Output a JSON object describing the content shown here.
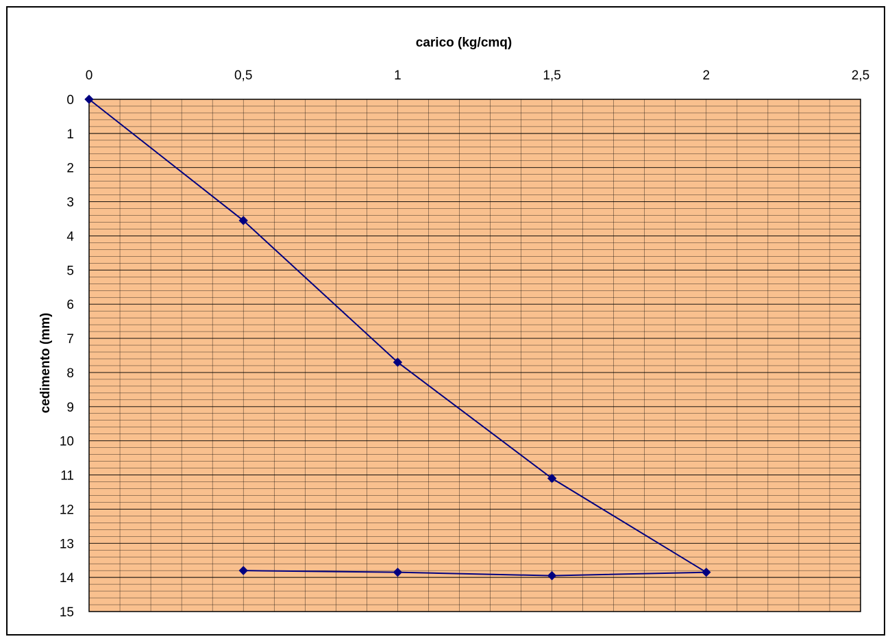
{
  "chart_data": {
    "type": "line",
    "xlabel": "carico (kg/cmq)",
    "ylabel": "cedimento (mm)",
    "x_axis_position": "top",
    "y_axis_inverted": true,
    "xlim": [
      0,
      2.5
    ],
    "ylim": [
      0,
      15
    ],
    "x_ticks": [
      "0",
      "0,5",
      "1",
      "1,5",
      "2",
      "2,5"
    ],
    "y_ticks": [
      "0",
      "1",
      "2",
      "3",
      "4",
      "5",
      "6",
      "7",
      "8",
      "9",
      "10",
      "11",
      "12",
      "13",
      "14",
      "15"
    ],
    "x_minor_step": 0.1,
    "y_minor_step": 0.2,
    "grid": true,
    "plot_background": "#F9C08E",
    "grid_color": "#000000",
    "series": [
      {
        "color": "#000080",
        "marker": "diamond",
        "x": [
          0,
          0.5,
          1,
          1.5,
          2,
          1.5,
          1,
          0.5
        ],
        "y": [
          0,
          3.55,
          7.7,
          11.1,
          13.85,
          13.95,
          13.85,
          13.8
        ]
      }
    ]
  }
}
